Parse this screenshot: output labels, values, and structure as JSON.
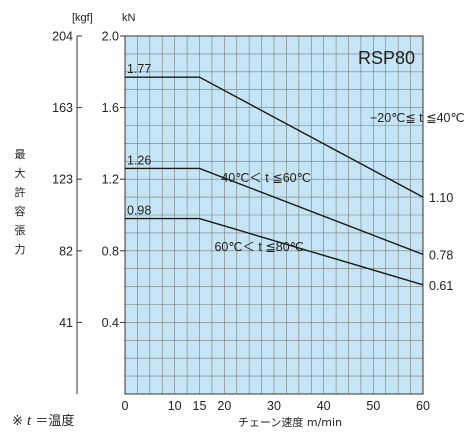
{
  "chart_data": {
    "type": "line",
    "title": "RSP80",
    "xlabel": "チェーン速度 m/min",
    "ylabel": "最大許容張力",
    "y_unit_primary": "kN",
    "y_unit_secondary": "[kgf]",
    "xlim": [
      0,
      60
    ],
    "ylim": [
      0,
      2.0
    ],
    "x_ticks": [
      0,
      10,
      15,
      20,
      30,
      40,
      50,
      60
    ],
    "y_ticks": [
      0.4,
      0.8,
      1.2,
      1.6,
      2.0
    ],
    "y_ticks_kgf": [
      41,
      82,
      123,
      163,
      204
    ],
    "grid": true,
    "background_color": "#c5e5f5",
    "grid_color": "#7a7a7a",
    "series": [
      {
        "name": "−20℃≦ t ≦40℃",
        "x": [
          0,
          15,
          60
        ],
        "y": [
          1.77,
          1.77,
          1.1
        ],
        "start_label": "1.77",
        "end_label": "1.10"
      },
      {
        "name": "40℃＜ t ≦60℃",
        "x": [
          0,
          15,
          60
        ],
        "y": [
          1.26,
          1.26,
          0.78
        ],
        "start_label": "1.26",
        "end_label": "0.78"
      },
      {
        "name": "60℃＜ t ≦80℃",
        "x": [
          0,
          15,
          60
        ],
        "y": [
          0.98,
          0.98,
          0.61
        ],
        "start_label": "0.98",
        "end_label": "0.61"
      }
    ]
  },
  "footnote": {
    "mark": "※",
    "var": "t",
    "text": "＝温度"
  }
}
